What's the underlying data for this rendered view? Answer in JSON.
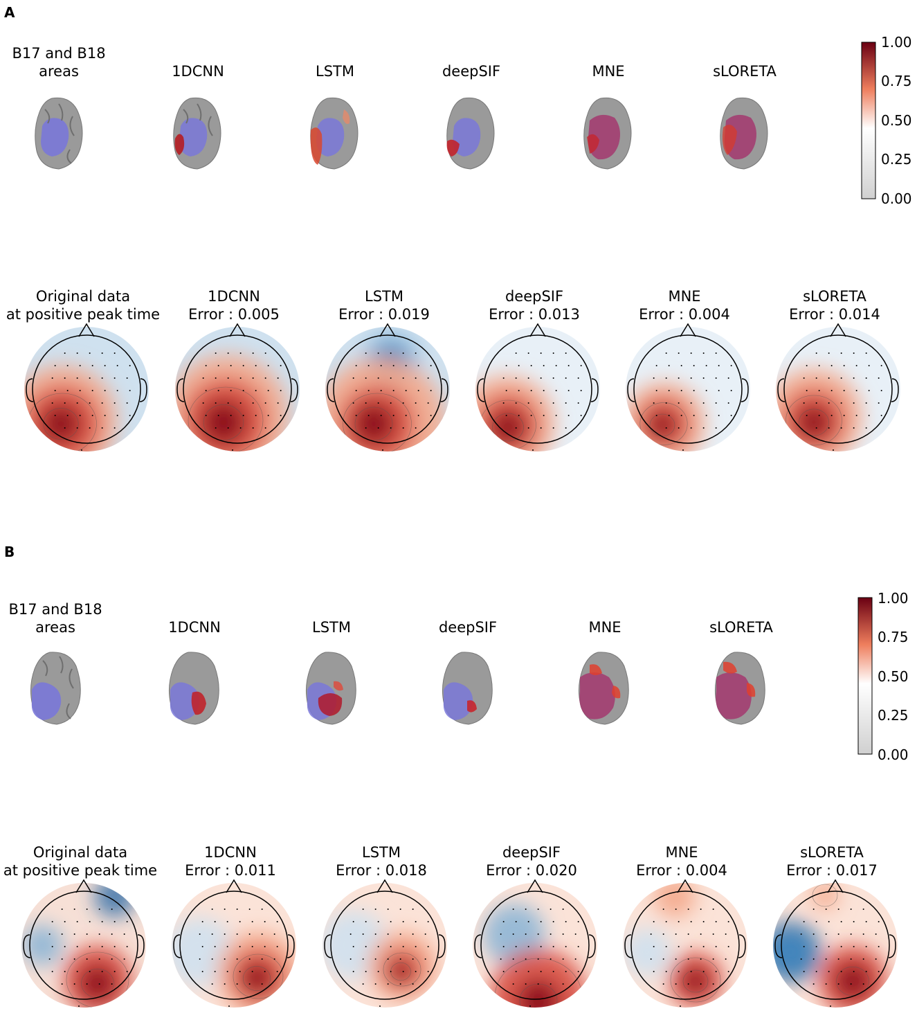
{
  "panels": [
    {
      "letter": "A",
      "brain_titles": [
        "B17 and B18",
        "areas",
        "1DCNN",
        "LSTM",
        "deepSIF",
        "MNE",
        "sLORETA"
      ],
      "topo_titles": [
        {
          "l1": "Original data",
          "l2": "at positive peak time"
        },
        {
          "l1": "1DCNN",
          "l2": "Error : 0.005"
        },
        {
          "l1": "LSTM",
          "l2": "Error : 0.019"
        },
        {
          "l1": "deepSIF",
          "l2": "Error : 0.013"
        },
        {
          "l1": "MNE",
          "l2": "Error : 0.004"
        },
        {
          "l1": "sLORETA",
          "l2": "Error : 0.014"
        }
      ],
      "colorbar_ticks": [
        "1.00",
        "0.75",
        "0.50",
        "0.25",
        "0.00"
      ]
    },
    {
      "letter": "B",
      "brain_titles": [
        "B17 and B18",
        "areas",
        "1DCNN",
        "LSTM",
        "deepSIF",
        "MNE",
        "sLORETA"
      ],
      "topo_titles": [
        {
          "l1": "Original data",
          "l2": "at positive peak time"
        },
        {
          "l1": "1DCNN",
          "l2": "Error : 0.011"
        },
        {
          "l1": "LSTM",
          "l2": "Error : 0.018"
        },
        {
          "l1": "deepSIF",
          "l2": "Error : 0.020"
        },
        {
          "l1": "MNE",
          "l2": "Error : 0.004"
        },
        {
          "l1": "sLORETA",
          "l2": "Error : 0.017"
        }
      ],
      "colorbar_ticks": [
        "1.00",
        "0.75",
        "0.50",
        "0.25",
        "0.00"
      ]
    }
  ],
  "colors": {
    "positive": "#8b0a1a",
    "negative": "#2c6ca8",
    "region": "#7a78d8",
    "cortex": "#9a9a9a"
  }
}
